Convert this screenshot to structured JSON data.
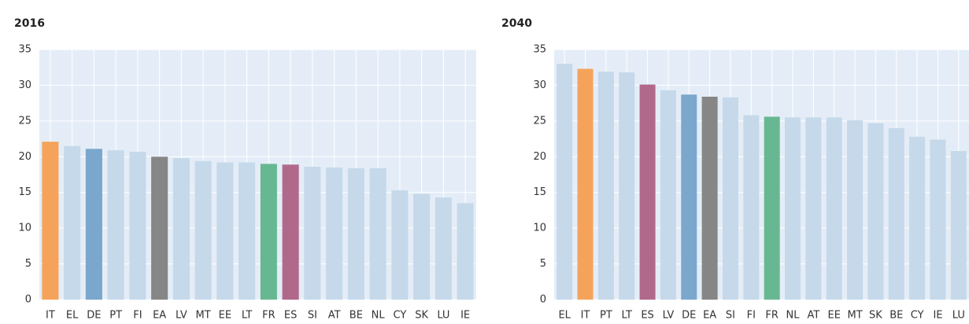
{
  "chart_data": [
    {
      "type": "bar",
      "title": "2016",
      "categories": [
        "IT",
        "EL",
        "DE",
        "PT",
        "FI",
        "EA",
        "LV",
        "MT",
        "EE",
        "LT",
        "FR",
        "ES",
        "SI",
        "AT",
        "BE",
        "NL",
        "CY",
        "SK",
        "LU",
        "IE"
      ],
      "values": [
        22.1,
        21.5,
        21.1,
        20.9,
        20.7,
        20.0,
        19.8,
        19.4,
        19.2,
        19.2,
        19.0,
        18.9,
        18.6,
        18.5,
        18.4,
        18.4,
        15.3,
        14.8,
        14.3,
        13.5
      ],
      "colors": [
        "#f5a35a",
        "#c5d9ea",
        "#7ba7cd",
        "#c5d9ea",
        "#c5d9ea",
        "#868686",
        "#c5d9ea",
        "#c5d9ea",
        "#c5d9ea",
        "#c5d9ea",
        "#67b892",
        "#b1698b",
        "#c5d9ea",
        "#c5d9ea",
        "#c5d9ea",
        "#c5d9ea",
        "#c5d9ea",
        "#c5d9ea",
        "#c5d9ea",
        "#c5d9ea"
      ],
      "ylim": [
        0,
        35
      ],
      "yticks": [
        0,
        5,
        10,
        15,
        20,
        25,
        30,
        35
      ],
      "grid": true
    },
    {
      "type": "bar",
      "title": "2040",
      "categories": [
        "EL",
        "IT",
        "PT",
        "LT",
        "ES",
        "LV",
        "DE",
        "EA",
        "SI",
        "FI",
        "FR",
        "NL",
        "AT",
        "EE",
        "MT",
        "SK",
        "BE",
        "CY",
        "IE",
        "LU"
      ],
      "values": [
        33.0,
        32.3,
        31.9,
        31.8,
        30.1,
        29.3,
        28.7,
        28.4,
        28.3,
        25.8,
        25.6,
        25.5,
        25.5,
        25.5,
        25.1,
        24.7,
        24.0,
        22.8,
        22.4,
        20.8
      ],
      "colors": [
        "#c5d9ea",
        "#f5a35a",
        "#c5d9ea",
        "#c5d9ea",
        "#b1698b",
        "#c5d9ea",
        "#7ba7cd",
        "#868686",
        "#c5d9ea",
        "#c5d9ea",
        "#67b892",
        "#c5d9ea",
        "#c5d9ea",
        "#c5d9ea",
        "#c5d9ea",
        "#c5d9ea",
        "#c5d9ea",
        "#c5d9ea",
        "#c5d9ea",
        "#c5d9ea"
      ],
      "ylim": [
        0,
        35
      ],
      "yticks": [
        0,
        5,
        10,
        15,
        20,
        25,
        30,
        35
      ],
      "grid": true
    }
  ]
}
